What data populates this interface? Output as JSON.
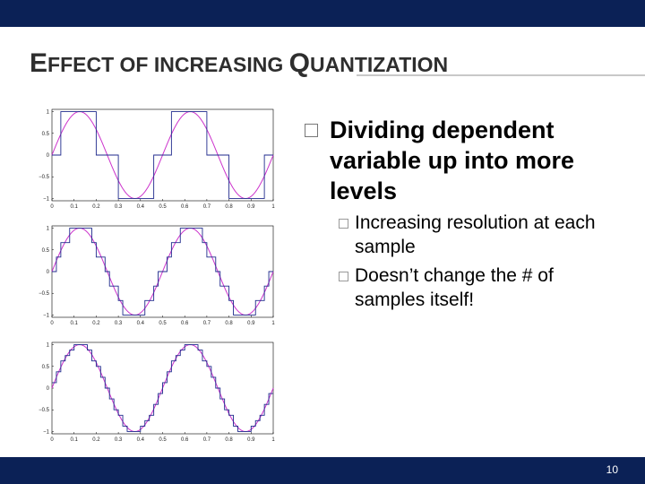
{
  "slide": {
    "title_first": "E",
    "title_part1": "FFECT OF INCREASING ",
    "title_q": "Q",
    "title_part2": "UANTIZATION",
    "page_number": "10"
  },
  "bullets": {
    "main": "Dividing dependent variable up into more levels",
    "sub": [
      "Increasing resolution at each sample",
      "Doesn’t change the # of samples itself!"
    ]
  },
  "colors": {
    "bar": "#0b2156",
    "sine": "#cc33cc",
    "staircase": "#1f2a8c"
  },
  "figure": {
    "x_ticks": [
      "0",
      "0.1",
      "0.2",
      "0.3",
      "0.4",
      "0.5",
      "0.6",
      "0.7",
      "0.8",
      "0.9",
      "1"
    ],
    "y_ticks": [
      "1",
      "0.5",
      "0",
      "−0.5",
      "−1"
    ]
  },
  "chart_data": [
    {
      "type": "line",
      "quantization_levels": 3,
      "frequency_cycles": 2,
      "xlim": [
        0,
        1
      ],
      "ylim": [
        -1,
        1
      ],
      "series": [
        {
          "kind": "sine"
        },
        {
          "kind": "quantized"
        }
      ]
    },
    {
      "type": "line",
      "quantization_levels": 7,
      "frequency_cycles": 2,
      "xlim": [
        0,
        1
      ],
      "ylim": [
        -1,
        1
      ],
      "series": [
        {
          "kind": "sine"
        },
        {
          "kind": "quantized"
        }
      ]
    },
    {
      "type": "line",
      "quantization_levels": 17,
      "frequency_cycles": 2,
      "xlim": [
        0,
        1
      ],
      "ylim": [
        -1,
        1
      ],
      "series": [
        {
          "kind": "sine"
        },
        {
          "kind": "quantized"
        }
      ]
    }
  ]
}
